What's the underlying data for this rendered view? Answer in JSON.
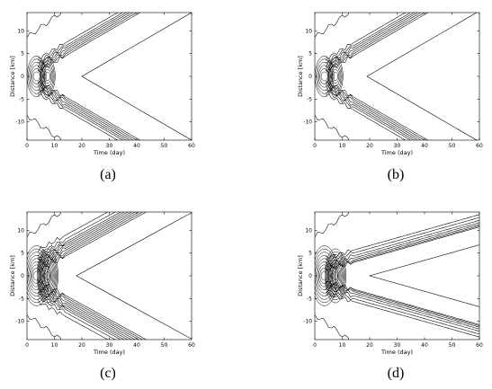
{
  "chart_data": [
    {
      "type": "contour",
      "caption": "(a)",
      "xlabel": "Time (day)",
      "ylabel": "Distance [km]",
      "xlim": [
        0,
        60
      ],
      "ylim": [
        -14,
        14
      ],
      "xticks": [
        0,
        10,
        20,
        30,
        40,
        50,
        60
      ],
      "yticks": [
        -10,
        -5,
        0,
        5,
        10
      ],
      "variant": "a",
      "front_speed_km_per_day": 0.35,
      "outer_vertex_day": 20
    },
    {
      "type": "contour",
      "caption": "(b)",
      "xlabel": "Time (day)",
      "ylabel": "Distance [km]",
      "xlim": [
        0,
        60
      ],
      "ylim": [
        -14,
        14
      ],
      "xticks": [
        0,
        10,
        20,
        30,
        40,
        50,
        60
      ],
      "yticks": [
        -10,
        -5,
        0,
        5,
        10
      ],
      "variant": "b",
      "front_speed_km_per_day": 0.35,
      "outer_vertex_day": 19
    },
    {
      "type": "contour",
      "caption": "(c)",
      "xlabel": "Time (day)",
      "ylabel": "Distance [km]",
      "xlim": [
        0,
        60
      ],
      "ylim": [
        -14,
        14
      ],
      "xticks": [
        0,
        10,
        20,
        30,
        40,
        50,
        60
      ],
      "yticks": [
        -10,
        -5,
        0,
        5,
        10
      ],
      "variant": "c",
      "front_speed_km_per_day": 0.33,
      "outer_vertex_day": 18
    },
    {
      "type": "contour",
      "caption": "(d)",
      "xlabel": "Time (day)",
      "ylabel": "Distance [km]",
      "xlim": [
        0,
        60
      ],
      "ylim": [
        -14,
        14
      ],
      "xticks": [
        0,
        10,
        20,
        30,
        40,
        50,
        60
      ],
      "yticks": [
        -10,
        -5,
        0,
        5,
        10
      ],
      "variant": "d",
      "front_speed_km_per_day": 0.17,
      "outer_vertex_day": 20
    }
  ]
}
